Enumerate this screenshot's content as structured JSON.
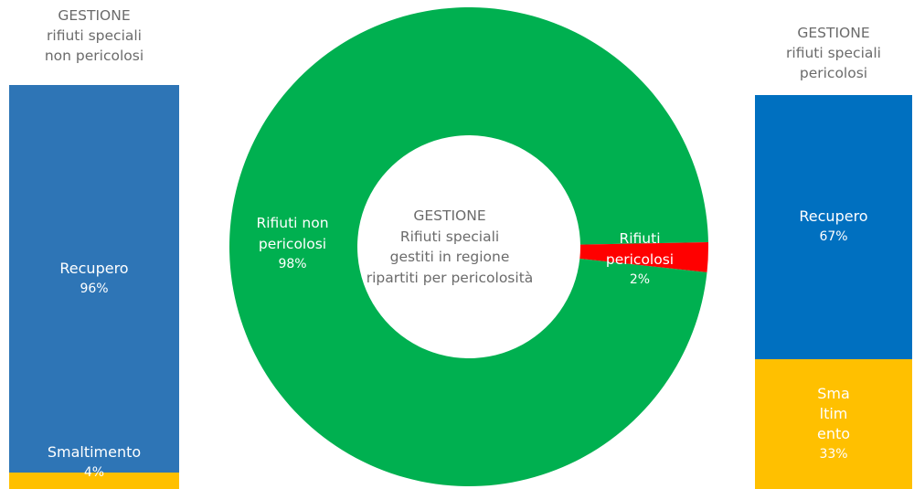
{
  "colors": {
    "left_recupero": "#2e75b6",
    "right_recupero": "#0070c0",
    "smaltimento": "#ffc000",
    "non_pericolosi": "#00b050",
    "pericolosi": "#ff0000",
    "title_text": "#6b6b6b"
  },
  "left": {
    "title": [
      "GESTIONE",
      "rifiuti speciali",
      "non pericolosi"
    ]
  },
  "right": {
    "title": [
      "GESTIONE",
      "rifiuti speciali",
      "pericolosi"
    ]
  },
  "donut": {
    "center_text": [
      "GESTIONE",
      "Rifiuti speciali",
      "gestiti in regione",
      "ripartiti per pericolosità"
    ],
    "non_label": [
      "Rifiuti non",
      "pericolosi"
    ],
    "non_pct": "98%",
    "per_label": [
      "Rifiuti",
      "pericolosi"
    ],
    "per_pct": "2%"
  },
  "chart_data": [
    {
      "type": "bar",
      "stacked": true,
      "title": "GESTIONE rifiuti speciali non pericolosi",
      "series": [
        {
          "name": "Recupero",
          "values": [
            96
          ],
          "label": "96%"
        },
        {
          "name": "Smaltimento",
          "values": [
            4
          ],
          "label": "4%"
        }
      ],
      "unit": "%"
    },
    {
      "type": "pie",
      "donut": true,
      "title": "GESTIONE Rifiuti speciali gestiti in regione ripartiti per pericolosità",
      "categories": [
        "Rifiuti non pericolosi",
        "Rifiuti pericolosi"
      ],
      "values": [
        98,
        2
      ],
      "labels": [
        "98%",
        "2%"
      ]
    },
    {
      "type": "bar",
      "stacked": true,
      "title": "GESTIONE rifiuti speciali pericolosi",
      "series": [
        {
          "name": "Recupero",
          "values": [
            67
          ],
          "label": "67%"
        },
        {
          "name": "Sma ltim ento",
          "values": [
            33
          ],
          "label": "33%"
        }
      ],
      "unit": "%"
    }
  ]
}
